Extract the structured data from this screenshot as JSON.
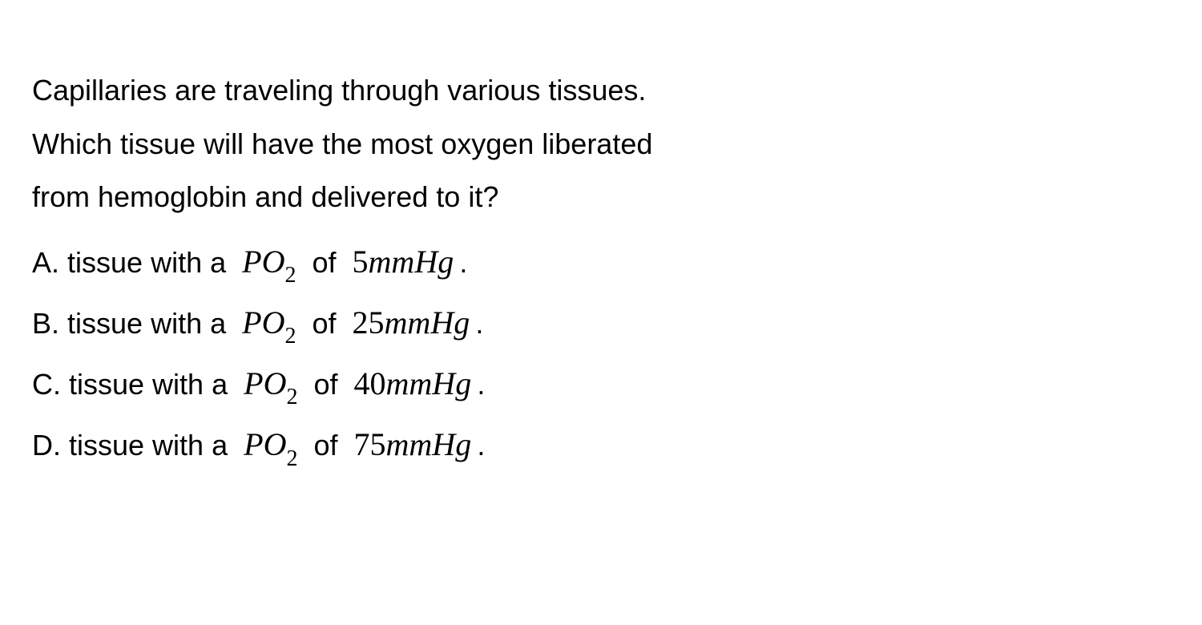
{
  "question": {
    "line1": "Capillaries are traveling through various tissues.",
    "line2": "Which tissue will have the most oxygen liberated",
    "line3": "from hemoglobin and delivered to it?"
  },
  "options": [
    {
      "label": "A.",
      "prefix": "tissue with a",
      "variable_p": "P",
      "variable_o": "O",
      "subscript": "2",
      "connector": "of",
      "value": "5",
      "unit_mm": "mm",
      "unit_h": "H",
      "unit_g": "g",
      "suffix": "."
    },
    {
      "label": "B.",
      "prefix": "tissue with a",
      "variable_p": "P",
      "variable_o": "O",
      "subscript": "2",
      "connector": "of",
      "value": "25",
      "unit_mm": "mm",
      "unit_h": "H",
      "unit_g": "g",
      "suffix": "."
    },
    {
      "label": "C.",
      "prefix": "tissue with a",
      "variable_p": "P",
      "variable_o": "O",
      "subscript": "2",
      "connector": "of",
      "value": "40",
      "unit_mm": "mm",
      "unit_h": "H",
      "unit_g": "g",
      "suffix": "."
    },
    {
      "label": "D.",
      "prefix": "tissue with a",
      "variable_p": "P",
      "variable_o": "O",
      "subscript": "2",
      "connector": "of",
      "value": "75",
      "unit_mm": "mm",
      "unit_h": "H",
      "unit_g": "g",
      "suffix": "."
    }
  ],
  "styling": {
    "background_color": "#ffffff",
    "text_color": "#000000",
    "body_font": "Arial",
    "math_font": "Times New Roman",
    "body_fontsize": 36,
    "math_fontsize": 40,
    "subscript_fontsize": 28,
    "line_height": 1.85
  }
}
